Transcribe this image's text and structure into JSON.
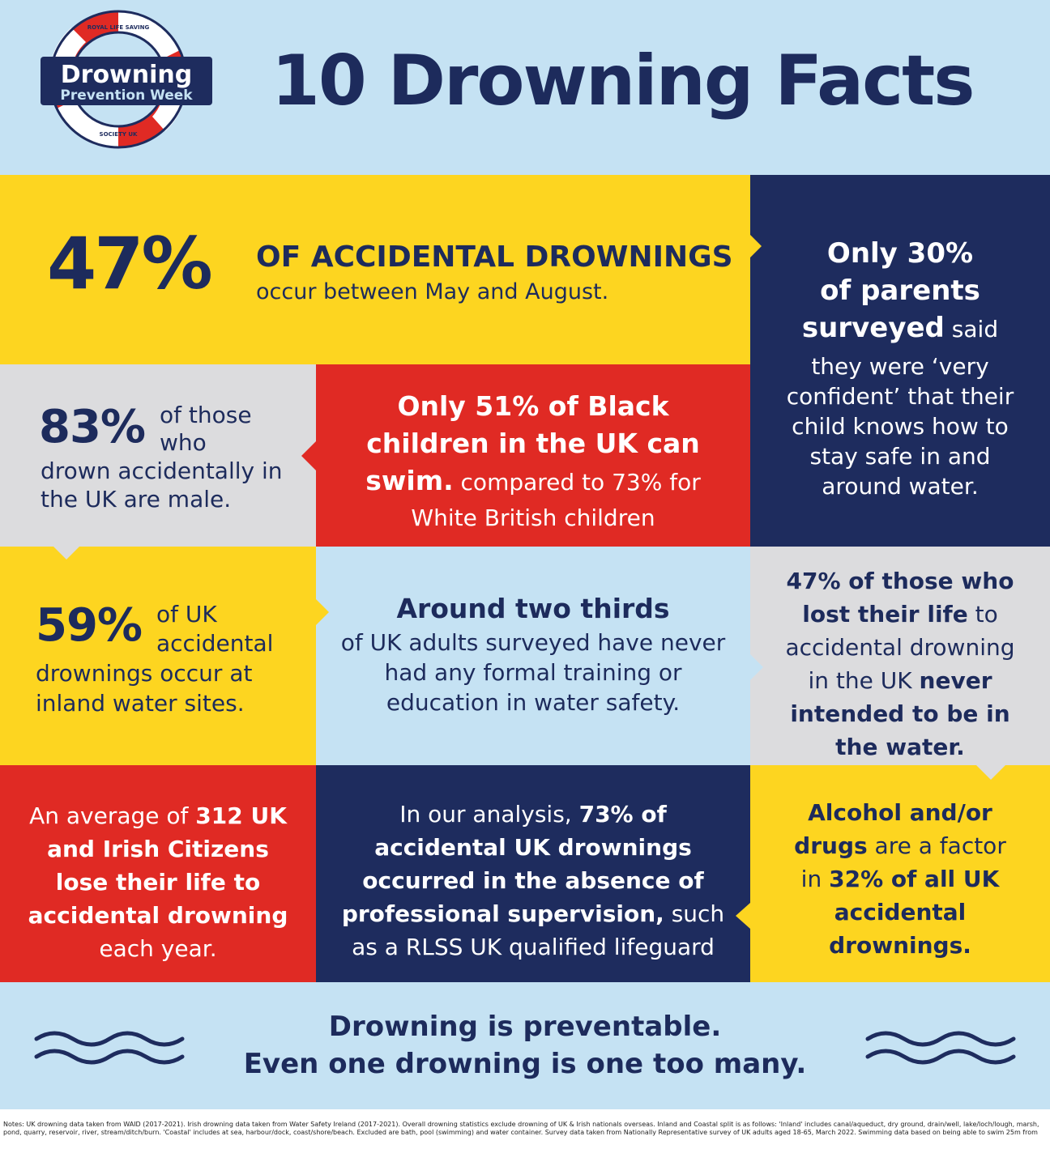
{
  "logo": {
    "ring_top": "ROYAL LIFE SAVING",
    "ring_bottom": "SOCIETY UK",
    "line1": "Drowning",
    "line2": "Prevention Week"
  },
  "title": "10 Drowning Facts",
  "facts": {
    "f1": {
      "big": "47%",
      "head": "OF ACCIDENTAL DROWNINGS",
      "sub": "occur between May and August."
    },
    "f2": {
      "l1": "Only 30%",
      "l2": "of parents",
      "l3b": "surveyed",
      "l3r": " said",
      "rest": "they were ‘very confident’ that their child knows how to stay safe in and around water."
    },
    "f3": {
      "big": "83%",
      "side1": "of those",
      "side2": "who",
      "rest": "drown accidentally in the UK are male."
    },
    "f4": {
      "bold": "Only 51% of Black children in the UK can swim.",
      "rest": " compared to 73% for White British children"
    },
    "f5": {
      "big": "59%",
      "side1": "of UK",
      "side2": "accidental",
      "rest": "drownings occur at inland water sites."
    },
    "f6": {
      "head": "Around two thirds",
      "rest": "of UK adults surveyed have never had any formal training or education in water safety."
    },
    "f7": {
      "b1": "47% of those who lost their life",
      "r1": " to accidental drowning in the UK ",
      "b2": "never intended to be in the water."
    },
    "f8": {
      "r1": "An average of ",
      "b1": "312 UK and Irish Citizens lose their life to accidental drowning",
      "r2": " each year."
    },
    "f9": {
      "r1": "In our analysis, ",
      "b1": "73% of accidental UK drownings occurred in the absence of professional supervision,",
      "r2": " such as a RLSS UK qualified lifeguard"
    },
    "f10": {
      "b1": "Alcohol and/or drugs",
      "r1": " are a factor in ",
      "b2": "32% of all UK accidental drownings."
    }
  },
  "footer": {
    "line1": "Drowning is preventable.",
    "line2": "Even one drowning is one too many."
  },
  "notes": "Notes: UK drowning data taken from WAID (2017-2021). Irish drowning data taken from Water Safety Ireland (2017-2021). Overall drowning statistics exclude drowning of UK & Irish nationals overseas. Inland and Coastal split is as follows: 'Inland' includes canal/aqueduct, dry ground, drain/well, lake/loch/lough, marsh, pond, quarry, reservoir, river, stream/ditch/burn. 'Coastal' includes at sea, harbour/dock, coast/shore/beach. Excluded are bath, pool (swimming) and water container. Survey data taken from Nationally Representative survey of UK adults aged 18-65, March 2022. Swimming data based on being able to swim 25m from",
  "colors": {
    "navy": "#1e2c5e",
    "yellow": "#fdd520",
    "red": "#e02a24",
    "light_blue": "#c5e2f3",
    "grey": "#dcdcde"
  }
}
